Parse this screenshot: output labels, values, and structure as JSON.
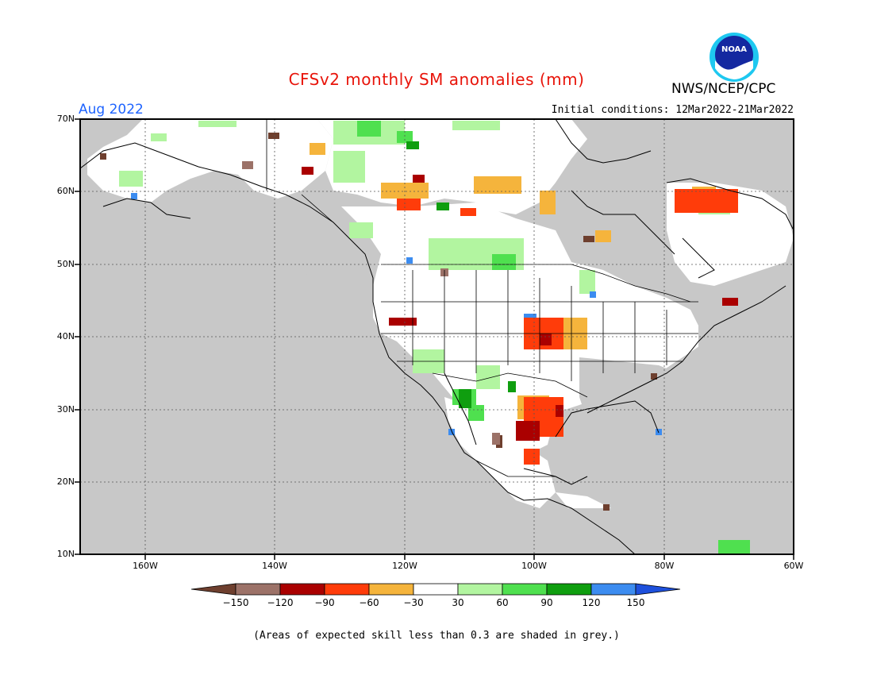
{
  "title": "CFSv2 monthly SM anomalies (mm)",
  "valid_month": "Aug 2022",
  "initial_conditions": "Initial conditions: 12Mar2022-21Mar2022",
  "organization": "NWS/NCEP/CPC",
  "logo_text": "NOAA",
  "footnote": "(Areas of expected skill less than 0.3 are shaded in grey.)",
  "lat_labels": [
    "70N",
    "60N",
    "50N",
    "40N",
    "30N",
    "20N",
    "10N"
  ],
  "lon_labels": [
    "160W",
    "140W",
    "120W",
    "100W",
    "80W",
    "60W"
  ],
  "colorbar": {
    "ticks": [
      "-150",
      "-120",
      "-90",
      "-60",
      "-30",
      "30",
      "60",
      "90",
      "120",
      "150"
    ],
    "colors": [
      "#6e3f2e",
      "#9c7268",
      "#aa0000",
      "#ff3c0a",
      "#f5b43c",
      "#ffffff",
      "#b2f5a0",
      "#4fe04f",
      "#0f9e0f",
      "#3c8cf0",
      "#1e50dc"
    ]
  },
  "colors": {
    "no_skill_grey": "#c8c8c8",
    "water": "#ffffff",
    "title": "#e8140a",
    "month": "#1e64ff"
  }
}
